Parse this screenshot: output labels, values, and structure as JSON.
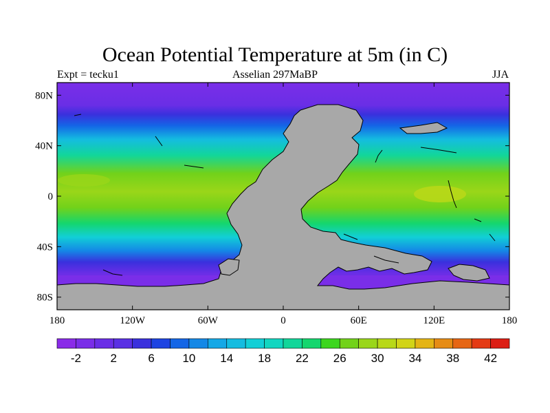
{
  "title": "Ocean Potential Temperature at 5m (in C)",
  "subtitle_left": "Expt = tecku1",
  "subtitle_center": "Asselian 297MaBP",
  "subtitle_right": "JJA",
  "lat_axis": [
    {
      "value": 80,
      "label": "80N"
    },
    {
      "value": 40,
      "label": "40N"
    },
    {
      "value": 0,
      "label": "0"
    },
    {
      "value": -40,
      "label": "40S"
    },
    {
      "value": -80,
      "label": "80S"
    }
  ],
  "lon_axis": [
    {
      "value": -180,
      "label": "180"
    },
    {
      "value": -120,
      "label": "120W"
    },
    {
      "value": -60,
      "label": "60W"
    },
    {
      "value": 0,
      "label": "0"
    },
    {
      "value": 60,
      "label": "60E"
    },
    {
      "value": 120,
      "label": "120E"
    },
    {
      "value": 180,
      "label": "180"
    }
  ],
  "colorbar": {
    "levels": [
      -4,
      -2,
      0,
      2,
      4,
      6,
      8,
      10,
      12,
      14,
      16,
      18,
      20,
      22,
      24,
      26,
      28,
      30,
      32,
      34,
      36,
      38,
      40,
      42,
      44
    ],
    "labels": [
      "-2",
      "2",
      "6",
      "10",
      "14",
      "18",
      "22",
      "26",
      "30",
      "34",
      "38",
      "42"
    ],
    "colors": [
      "#8a2be8",
      "#7a2ee8",
      "#6a2ee6",
      "#5a30e4",
      "#3a30dd",
      "#1e44e2",
      "#1466e6",
      "#1488e6",
      "#14a8e6",
      "#14bce0",
      "#12cfd6",
      "#12d6c0",
      "#12d69a",
      "#14d66e",
      "#3cd61e",
      "#72d21a",
      "#9ad619",
      "#b8d818",
      "#d2d417",
      "#e4b414",
      "#e68c14",
      "#e66614",
      "#e43a14",
      "#dc1e14"
    ]
  },
  "colors": {
    "land": "#a8a8a8",
    "coast": "#000000"
  }
}
